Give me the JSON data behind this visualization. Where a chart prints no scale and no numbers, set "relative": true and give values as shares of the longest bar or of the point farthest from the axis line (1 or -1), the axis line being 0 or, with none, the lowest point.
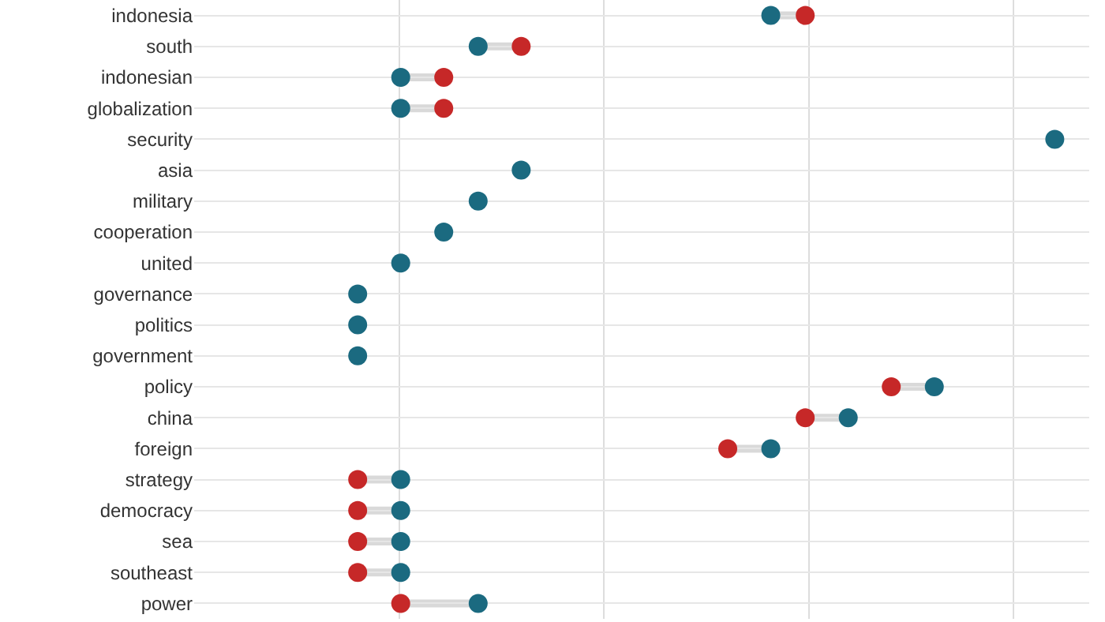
{
  "chart_data": {
    "type": "scatter",
    "orientation": "horizontal",
    "relative": true,
    "grid": true,
    "marker": "circle",
    "tick_labels": "y",
    "categories": [
      "indonesia",
      "south",
      "indonesian",
      "globalization",
      "security",
      "asia",
      "military",
      "cooperation",
      "united",
      "governance",
      "politics",
      "government",
      "policy",
      "china",
      "foreign",
      "strategy",
      "democracy",
      "sea",
      "southeast",
      "power"
    ],
    "series": [
      {
        "color": "#c62828",
        "values": [
          0.71,
          0.38,
          0.29,
          0.29,
          null,
          null,
          null,
          null,
          null,
          null,
          null,
          null,
          0.81,
          0.71,
          0.62,
          0.19,
          0.19,
          0.19,
          0.19,
          0.24
        ]
      },
      {
        "color": "#1b6a80",
        "values": [
          0.67,
          0.33,
          0.24,
          0.24,
          1,
          0.38,
          0.33,
          0.29,
          0.24,
          0.19,
          0.19,
          0.19,
          0.86,
          0.76,
          0.67,
          0.24,
          0.24,
          0.24,
          0.24,
          0.33
        ]
      }
    ]
  }
}
